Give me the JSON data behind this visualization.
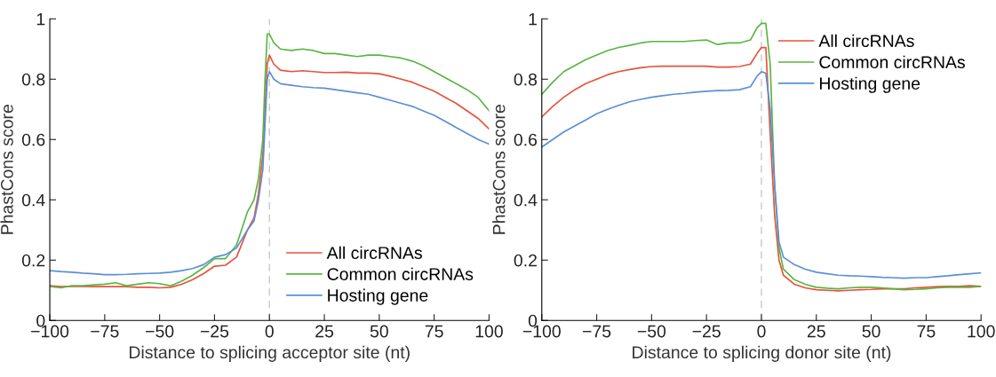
{
  "chart_data": [
    {
      "type": "line",
      "xlabel": "Distance to splicing acceptor site (nt)",
      "ylabel": "PhastCons score",
      "x": [
        -100,
        -95,
        -90,
        -85,
        -80,
        -75,
        -70,
        -65,
        -60,
        -55,
        -50,
        -45,
        -40,
        -35,
        -30,
        -25,
        -20,
        -15,
        -10,
        -7,
        -5,
        -3,
        -2,
        -1,
        0,
        2,
        5,
        10,
        15,
        20,
        25,
        30,
        35,
        40,
        45,
        50,
        55,
        60,
        65,
        70,
        75,
        80,
        85,
        90,
        95,
        100
      ],
      "series": [
        {
          "name": "All circRNAs",
          "color": "#e8523a",
          "values": [
            0.115,
            0.112,
            0.113,
            0.113,
            0.112,
            0.112,
            0.112,
            0.112,
            0.11,
            0.11,
            0.108,
            0.11,
            0.12,
            0.135,
            0.155,
            0.18,
            0.183,
            0.21,
            0.3,
            0.34,
            0.42,
            0.55,
            0.7,
            0.85,
            0.88,
            0.85,
            0.83,
            0.825,
            0.828,
            0.825,
            0.822,
            0.822,
            0.823,
            0.82,
            0.82,
            0.818,
            0.81,
            0.8,
            0.79,
            0.775,
            0.76,
            0.74,
            0.72,
            0.695,
            0.67,
            0.635
          ]
        },
        {
          "name": "Common circRNAs",
          "color": "#5ab543",
          "values": [
            0.113,
            0.108,
            0.115,
            0.115,
            0.118,
            0.12,
            0.125,
            0.115,
            0.12,
            0.125,
            0.122,
            0.115,
            0.13,
            0.15,
            0.175,
            0.205,
            0.205,
            0.25,
            0.36,
            0.4,
            0.47,
            0.6,
            0.8,
            0.95,
            0.95,
            0.92,
            0.9,
            0.895,
            0.9,
            0.895,
            0.885,
            0.885,
            0.88,
            0.875,
            0.88,
            0.88,
            0.875,
            0.87,
            0.86,
            0.845,
            0.825,
            0.805,
            0.785,
            0.765,
            0.74,
            0.695
          ]
        },
        {
          "name": "Hosting gene",
          "color": "#5b8fd6",
          "values": [
            0.165,
            0.162,
            0.16,
            0.157,
            0.155,
            0.152,
            0.152,
            0.153,
            0.155,
            0.156,
            0.157,
            0.16,
            0.165,
            0.172,
            0.185,
            0.21,
            0.218,
            0.24,
            0.3,
            0.33,
            0.4,
            0.5,
            0.65,
            0.8,
            0.825,
            0.8,
            0.785,
            0.78,
            0.775,
            0.772,
            0.77,
            0.765,
            0.76,
            0.755,
            0.75,
            0.74,
            0.73,
            0.72,
            0.71,
            0.695,
            0.68,
            0.66,
            0.64,
            0.62,
            0.6,
            0.585
          ]
        }
      ],
      "xlim": [
        -100,
        100
      ],
      "ylim": [
        0,
        1
      ],
      "xticks": [
        {
          "value": -100,
          "label": "−100"
        },
        {
          "value": -75,
          "label": "−75"
        },
        {
          "value": -50,
          "label": "−50"
        },
        {
          "value": -25,
          "label": "−25"
        },
        0,
        25,
        50,
        75,
        100
      ],
      "yticks": [
        0,
        0.2,
        0.4,
        0.6,
        0.8,
        1
      ],
      "ref_lines": [
        {
          "axis": "x",
          "value": 0,
          "color": "#c8c8c8",
          "line_style": "dashed"
        }
      ],
      "legend": "bottom right",
      "grid": false
    },
    {
      "type": "line",
      "xlabel": "Distance to splicing donor site (nt)",
      "ylabel": "PhastCons score",
      "x": [
        -100,
        -95,
        -90,
        -85,
        -80,
        -75,
        -70,
        -65,
        -60,
        -55,
        -50,
        -45,
        -40,
        -35,
        -30,
        -25,
        -20,
        -15,
        -10,
        -5,
        -2,
        0,
        2,
        4,
        6,
        8,
        10,
        15,
        20,
        25,
        30,
        35,
        40,
        45,
        50,
        55,
        60,
        65,
        70,
        75,
        80,
        85,
        90,
        95,
        100
      ],
      "series": [
        {
          "name": "All circRNAs",
          "color": "#e8523a",
          "values": [
            0.675,
            0.71,
            0.74,
            0.765,
            0.785,
            0.8,
            0.815,
            0.825,
            0.832,
            0.838,
            0.842,
            0.843,
            0.843,
            0.843,
            0.843,
            0.843,
            0.84,
            0.84,
            0.842,
            0.85,
            0.885,
            0.905,
            0.905,
            0.62,
            0.35,
            0.2,
            0.15,
            0.12,
            0.108,
            0.102,
            0.1,
            0.098,
            0.1,
            0.102,
            0.103,
            0.105,
            0.105,
            0.105,
            0.108,
            0.11,
            0.112,
            0.113,
            0.113,
            0.115,
            0.113
          ]
        },
        {
          "name": "Common circRNAs",
          "color": "#5ab543",
          "values": [
            0.75,
            0.79,
            0.825,
            0.845,
            0.865,
            0.88,
            0.895,
            0.905,
            0.912,
            0.92,
            0.925,
            0.925,
            0.925,
            0.925,
            0.928,
            0.93,
            0.915,
            0.92,
            0.92,
            0.93,
            0.97,
            0.985,
            0.985,
            0.85,
            0.45,
            0.24,
            0.17,
            0.135,
            0.12,
            0.11,
            0.107,
            0.105,
            0.108,
            0.11,
            0.11,
            0.108,
            0.105,
            0.102,
            0.103,
            0.105,
            0.108,
            0.11,
            0.11,
            0.11,
            0.113
          ]
        },
        {
          "name": "Hosting gene",
          "color": "#5b8fd6",
          "values": [
            0.575,
            0.6,
            0.625,
            0.645,
            0.665,
            0.685,
            0.7,
            0.713,
            0.725,
            0.733,
            0.74,
            0.745,
            0.75,
            0.753,
            0.757,
            0.76,
            0.762,
            0.763,
            0.765,
            0.775,
            0.81,
            0.825,
            0.82,
            0.7,
            0.45,
            0.26,
            0.21,
            0.185,
            0.17,
            0.16,
            0.155,
            0.15,
            0.148,
            0.147,
            0.145,
            0.143,
            0.142,
            0.14,
            0.142,
            0.142,
            0.145,
            0.148,
            0.152,
            0.155,
            0.158
          ]
        }
      ],
      "xlim": [
        -100,
        100
      ],
      "ylim": [
        0,
        1
      ],
      "xticks": [
        {
          "value": -100,
          "label": "−100"
        },
        {
          "value": -75,
          "label": "−75"
        },
        {
          "value": -50,
          "label": "−50"
        },
        {
          "value": -25,
          "label": "−25"
        },
        0,
        25,
        50,
        75,
        100
      ],
      "yticks": [
        0,
        0.2,
        0.4,
        0.6,
        0.8,
        1
      ],
      "ref_lines": [
        {
          "axis": "x",
          "value": 0,
          "color": "#c8c8c8",
          "line_style": "dashed"
        }
      ],
      "legend": "top right",
      "grid": false
    }
  ]
}
